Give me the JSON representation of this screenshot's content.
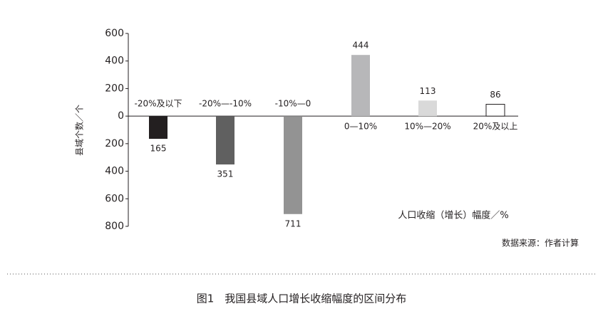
{
  "chart_data": {
    "type": "bar",
    "categories": [
      "-20%及以下",
      "-20%—-10%",
      "-10%—0",
      "0—10%",
      "10%—20%",
      "20%及以上"
    ],
    "values": [
      -165,
      -351,
      -711,
      444,
      113,
      86
    ],
    "value_labels": [
      "165",
      "351",
      "711",
      "444",
      "113",
      "86"
    ],
    "colors": [
      "#231f20",
      "#606060",
      "#939393",
      "#b7b7b9",
      "#d9d9d9",
      "#ffffff"
    ],
    "ylim": [
      -800,
      600
    ],
    "yticks": [
      {
        "value": -800,
        "label": "800"
      },
      {
        "value": -600,
        "label": "600"
      },
      {
        "value": -400,
        "label": "400"
      },
      {
        "value": -200,
        "label": "200"
      },
      0,
      200,
      400,
      600
    ],
    "y_label": "县域个数／个",
    "x_label": "人口收缩（增长）幅度／%",
    "source": "数据来源：作者计算",
    "caption": "图1　我国县域人口增长收缩幅度的区间分布"
  }
}
